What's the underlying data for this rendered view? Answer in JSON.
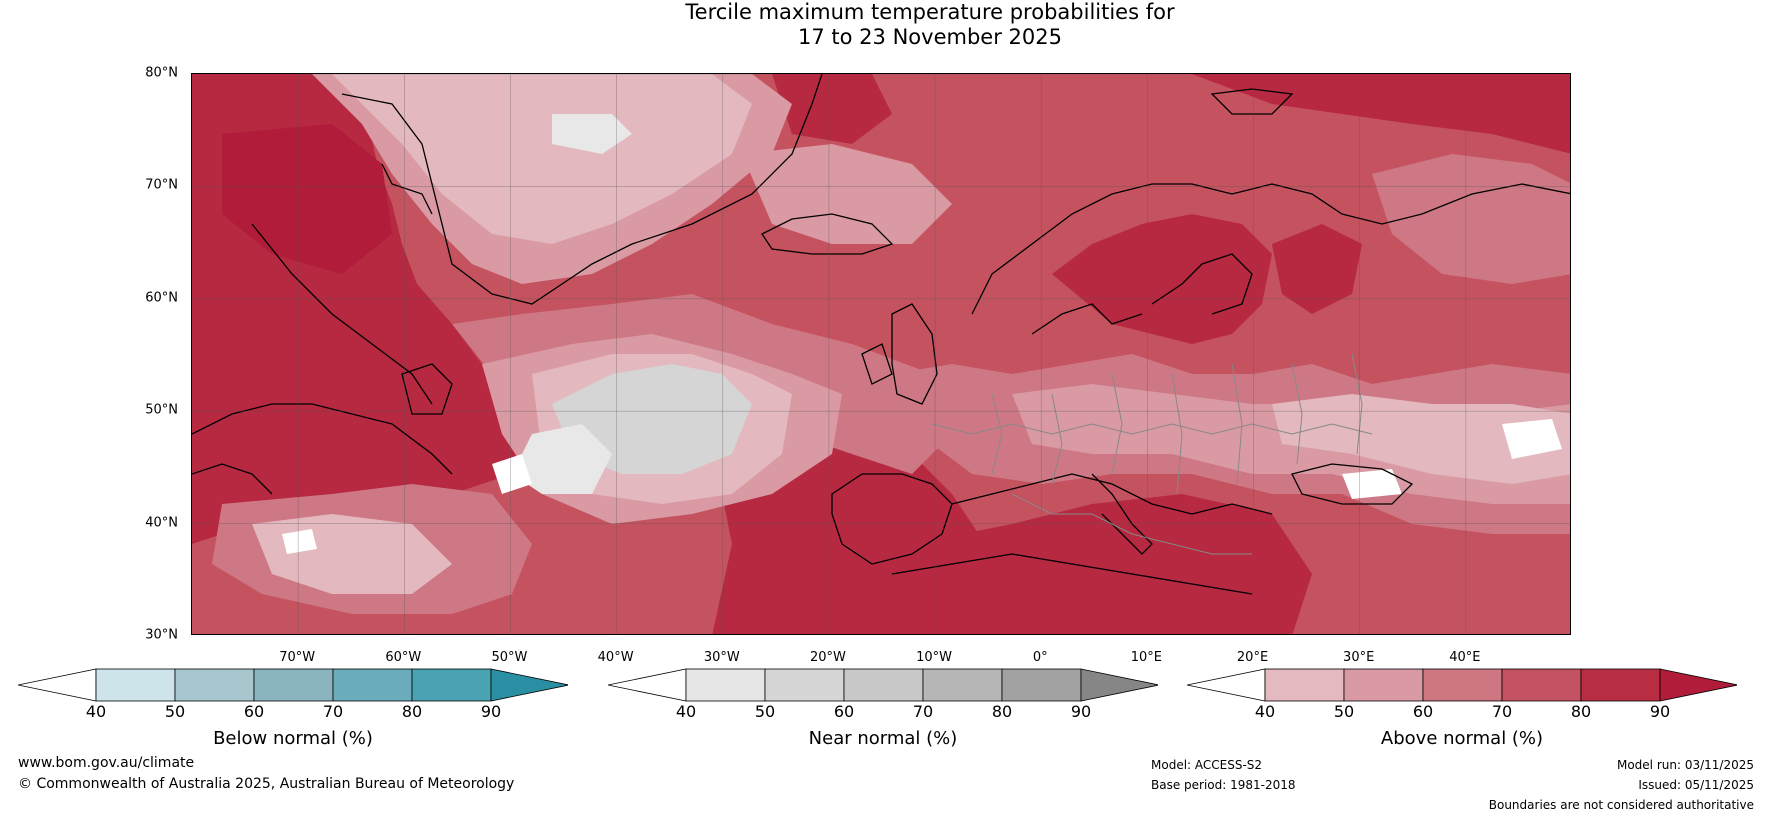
{
  "title": {
    "line1": "Tercile maximum temperature probabilities for",
    "line2": "17 to 23 November 2025"
  },
  "map": {
    "lat_ticks": [
      "80°N",
      "70°N",
      "60°N",
      "50°N",
      "40°N",
      "30°N"
    ],
    "lon_ticks": [
      "70°W",
      "60°W",
      "50°W",
      "40°W",
      "30°W",
      "20°W",
      "10°W",
      "0°",
      "10°E",
      "20°E",
      "30°E",
      "40°E"
    ],
    "colors": {
      "above_40_50": "#e3b9bf",
      "above_50_60": "#d99aa3",
      "above_60_70": "#cf7885",
      "above_70_80": "#c4535f",
      "above_80_90": "#b72841",
      "above_90": "#b01c3a",
      "near_40_50": "#e8e8e8",
      "near_50_60": "#d5d5d5",
      "white": "#ffffff",
      "coast": "#000000",
      "border": "#888888"
    }
  },
  "colorbars": [
    {
      "label": "Below normal (%)",
      "ticks": [
        "40",
        "50",
        "60",
        "70",
        "80",
        "90"
      ],
      "colors": [
        "#ffffff",
        "#cde4ea",
        "#a8c6ce",
        "#8ab4c0",
        "#6aacbb",
        "#4aa3b3",
        "#2a8fa2"
      ]
    },
    {
      "label": "Near normal (%)",
      "ticks": [
        "40",
        "50",
        "60",
        "70",
        "80",
        "90"
      ],
      "colors": [
        "#ffffff",
        "#e6e6e6",
        "#d6d6d6",
        "#c8c8c8",
        "#b6b6b6",
        "#a2a2a2",
        "#868686"
      ]
    },
    {
      "label": "Above normal (%)",
      "ticks": [
        "40",
        "50",
        "60",
        "70",
        "80",
        "90"
      ],
      "colors": [
        "#ffffff",
        "#e4b9c0",
        "#d99aa3",
        "#ce7682",
        "#c45262",
        "#b92d43",
        "#b01c3a"
      ]
    }
  ],
  "footer": {
    "website": "www.bom.gov.au/climate",
    "copyright": "© Commonwealth of Australia 2025, Australian Bureau of Meteorology",
    "model": "Model: ACCESS-S2",
    "base_period": "Base period: 1981-2018",
    "model_run": "Model run: 03/11/2025",
    "issued": "Issued: 05/11/2025",
    "disclaimer": "Boundaries are not considered authoritative"
  }
}
